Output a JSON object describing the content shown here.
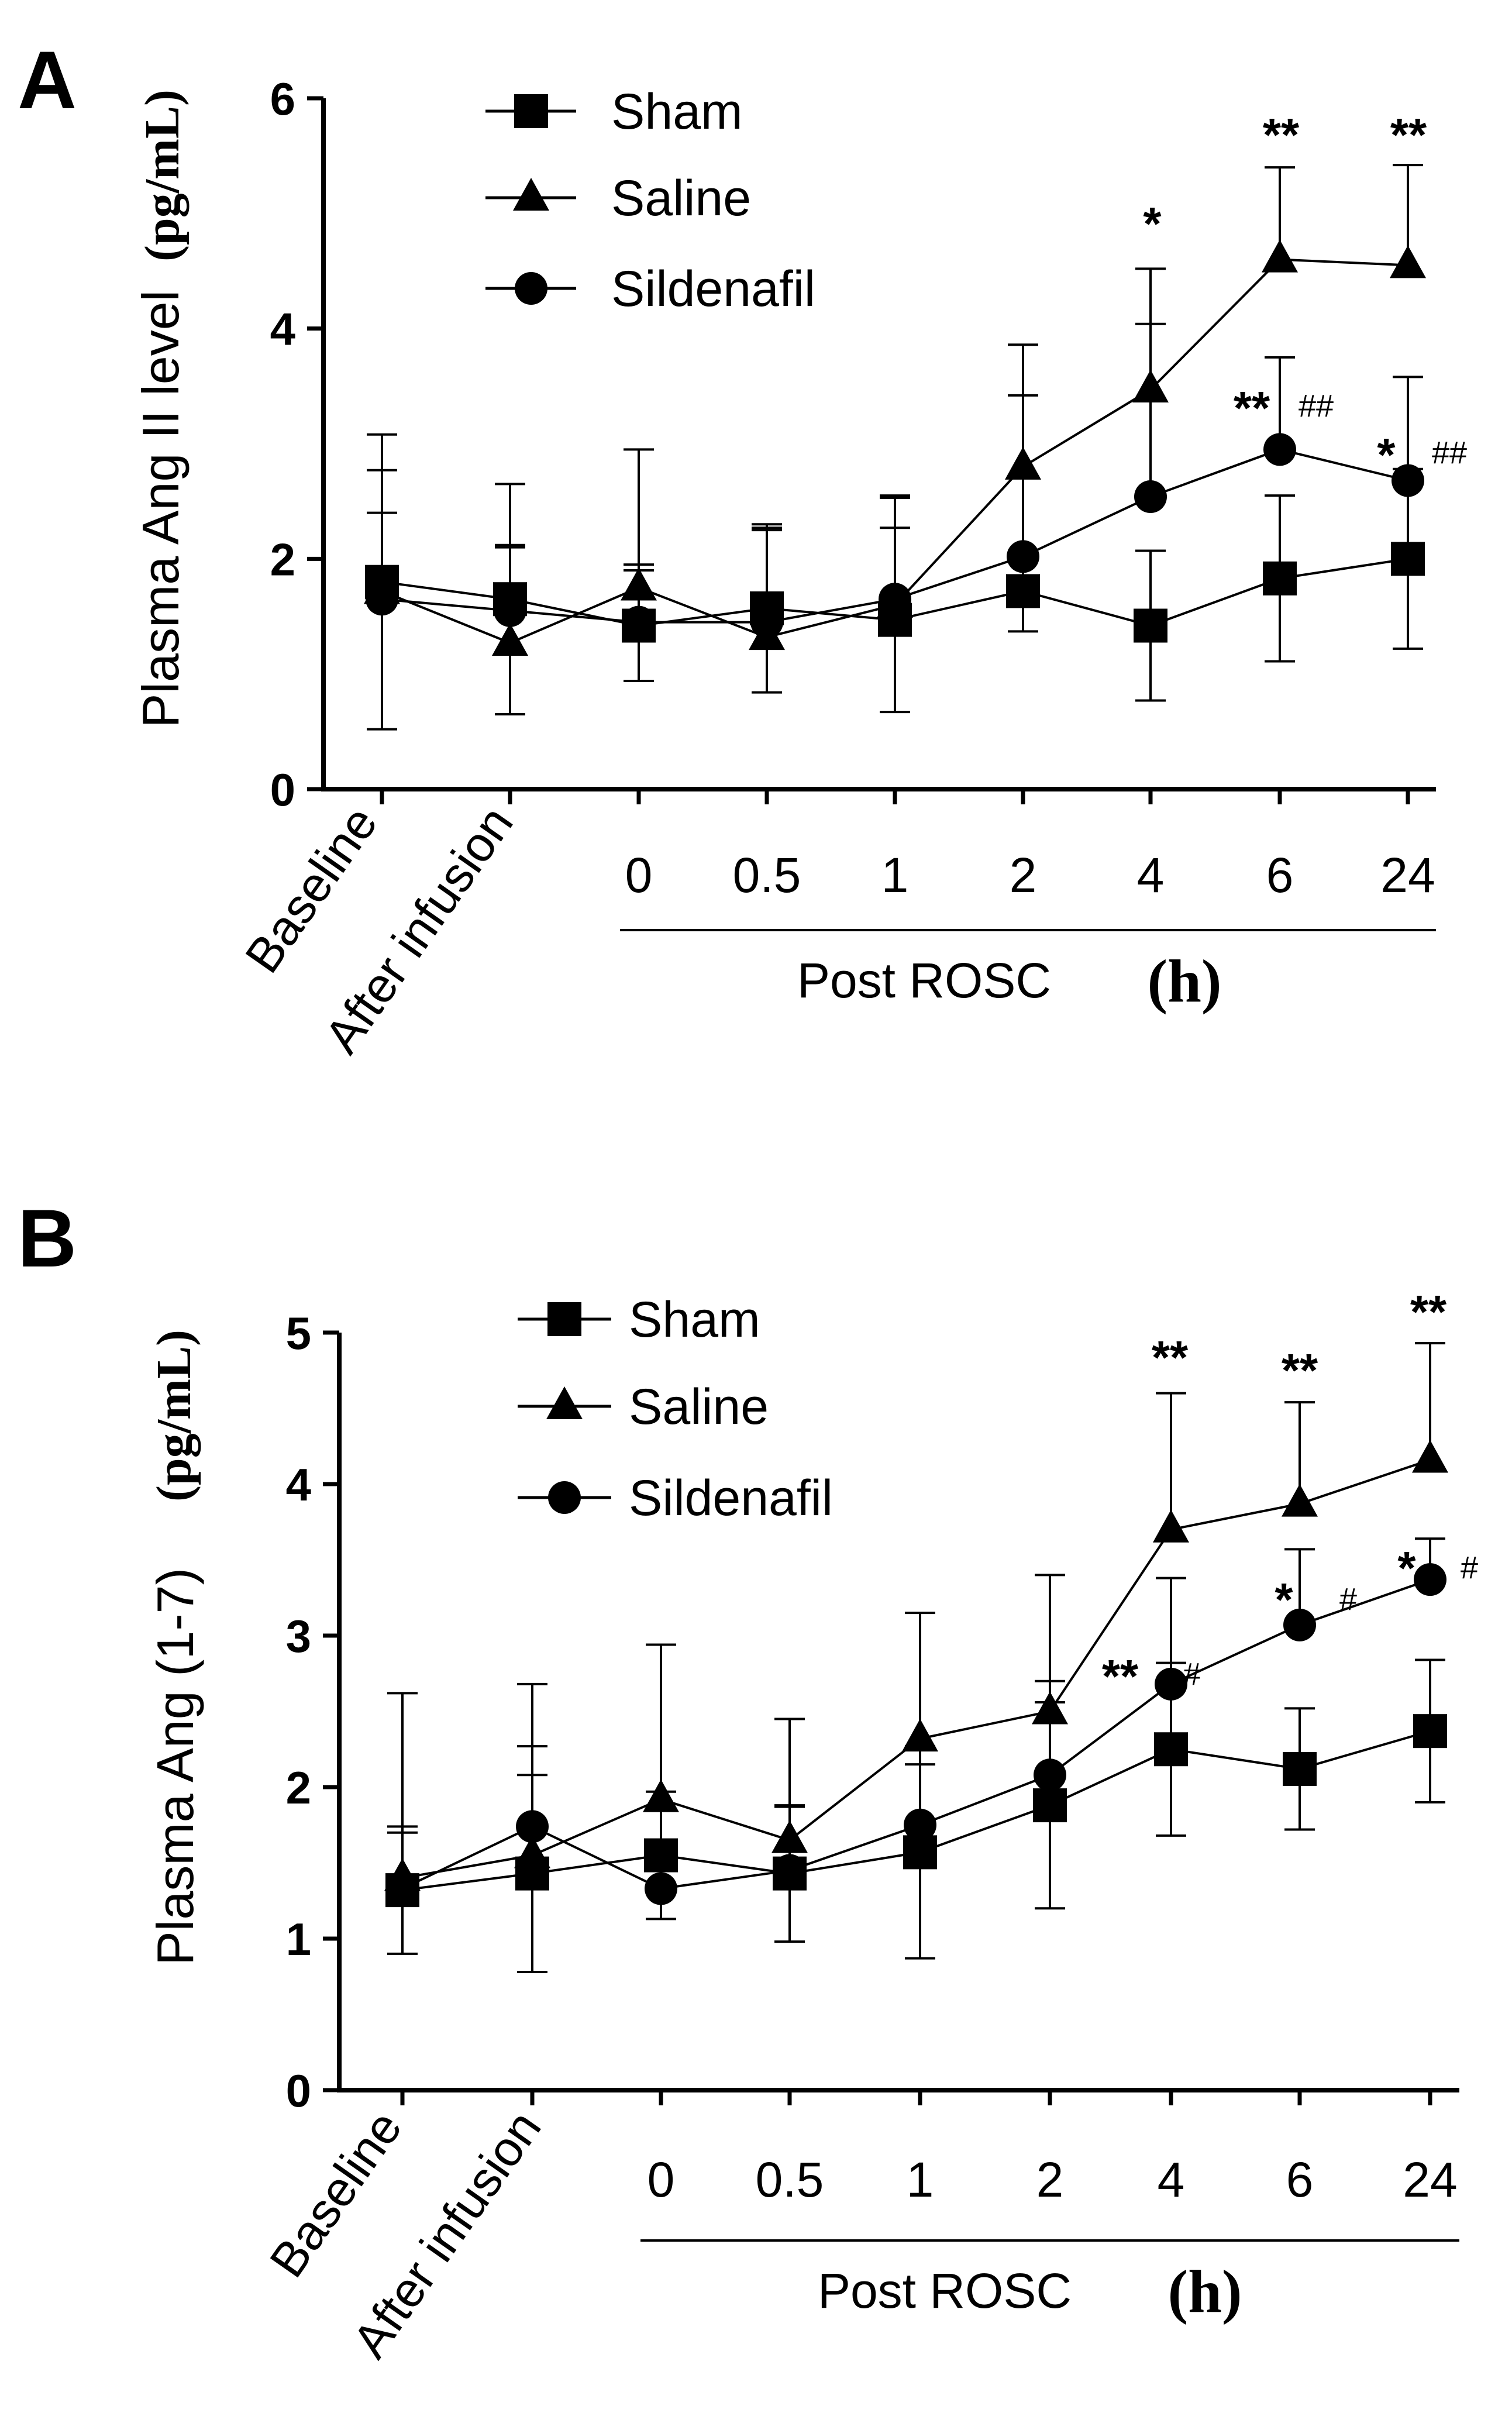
{
  "chart_data": [
    {
      "panel": "A",
      "type": "line",
      "ylabel": "Plasma Ang II level",
      "yunit": "(pg/mL)",
      "ylim": [
        0,
        6
      ],
      "yticks": [
        "0",
        "2",
        "4",
        "6"
      ],
      "categories": [
        "Baseline",
        "After infusion",
        "0",
        "0.5",
        "1",
        "2",
        "4",
        "6",
        "24"
      ],
      "group_label": "Post ROSC",
      "group_unit": "(h)",
      "legend": [
        "Sham",
        "Saline",
        "Sildenafil"
      ],
      "series": [
        {
          "name": "Sham",
          "marker": "square",
          "values": [
            1.8,
            1.65,
            1.42,
            1.57,
            1.47,
            1.72,
            1.42,
            1.83,
            2.0
          ],
          "errors": [
            1.28,
            1.0,
            0.48,
            0.73,
            0.8,
            0.35,
            0.65,
            0.72,
            0.78
          ]
        },
        {
          "name": "Saline",
          "marker": "triangle",
          "values": [
            1.72,
            1.27,
            1.75,
            1.32,
            1.6,
            2.8,
            3.47,
            4.6,
            4.55
          ],
          "errors": [
            1.05,
            0.85,
            1.2,
            0.95,
            0.95,
            1.06,
            1.05,
            0.8,
            0.87
          ]
        },
        {
          "name": "Sildenafil",
          "marker": "circle",
          "values": [
            1.65,
            1.55,
            1.45,
            1.45,
            1.65,
            2.02,
            2.54,
            2.95,
            2.68
          ],
          "errors": [
            0.75,
            0.55,
            0.5,
            0.8,
            0.88,
            1.4,
            1.5,
            0.8,
            0.9
          ]
        }
      ],
      "annotations": [
        {
          "category": "4",
          "star": "*",
          "hash": ""
        },
        {
          "category": "6",
          "star": "**",
          "hash": ""
        },
        {
          "category": "24",
          "star": "**",
          "hash": ""
        },
        {
          "category": "6",
          "star": "**",
          "hash": "##"
        },
        {
          "category": "24",
          "star": "*",
          "hash": "##"
        }
      ]
    },
    {
      "panel": "B",
      "type": "line",
      "ylabel": "Plasma Ang (1-7)",
      "yunit": "(pg/mL)",
      "ylim": [
        0,
        5
      ],
      "yticks": [
        "0",
        "1",
        "2",
        "3",
        "4",
        "5"
      ],
      "categories": [
        "Baseline",
        "After infusion",
        "0",
        "0.5",
        "1",
        "2",
        "4",
        "6",
        "24"
      ],
      "group_label": "Post ROSC",
      "group_unit": "(h)",
      "legend": [
        "Sham",
        "Saline",
        "Sildenafil"
      ],
      "series": [
        {
          "name": "Sham",
          "marker": "square",
          "values": [
            1.32,
            1.43,
            1.55,
            1.43,
            1.57,
            1.88,
            2.25,
            2.12,
            2.37
          ],
          "errors": [
            0.42,
            0.65,
            0.42,
            0.45,
            0.7,
            0.68,
            0.57,
            0.4,
            0.47
          ]
        },
        {
          "name": "Saline",
          "marker": "triangle",
          "values": [
            1.4,
            1.55,
            1.92,
            1.65,
            2.32,
            2.5,
            3.7,
            3.87,
            4.16
          ],
          "errors": [
            1.22,
            1.13,
            1.02,
            0.8,
            0.83,
            0.9,
            0.9,
            0.67,
            0.77
          ]
        },
        {
          "name": "Sildenafil",
          "marker": "circle",
          "values": [
            1.33,
            1.74,
            1.33,
            1.45,
            1.75,
            2.08,
            2.68,
            3.07,
            3.37
          ],
          "errors": [
            0.37,
            0.53,
            0.2,
            0.42,
            0.4,
            0.62,
            0.7,
            0.5,
            0.27
          ]
        }
      ],
      "annotations": [
        {
          "category": "4",
          "star": "**",
          "hash": ""
        },
        {
          "category": "6",
          "star": "**",
          "hash": ""
        },
        {
          "category": "24",
          "star": "**",
          "hash": ""
        },
        {
          "category": "4",
          "star": "**",
          "hash": "#"
        },
        {
          "category": "6",
          "star": "*",
          "hash": "#"
        },
        {
          "category": "24",
          "star": "*",
          "hash": "#"
        }
      ]
    }
  ]
}
